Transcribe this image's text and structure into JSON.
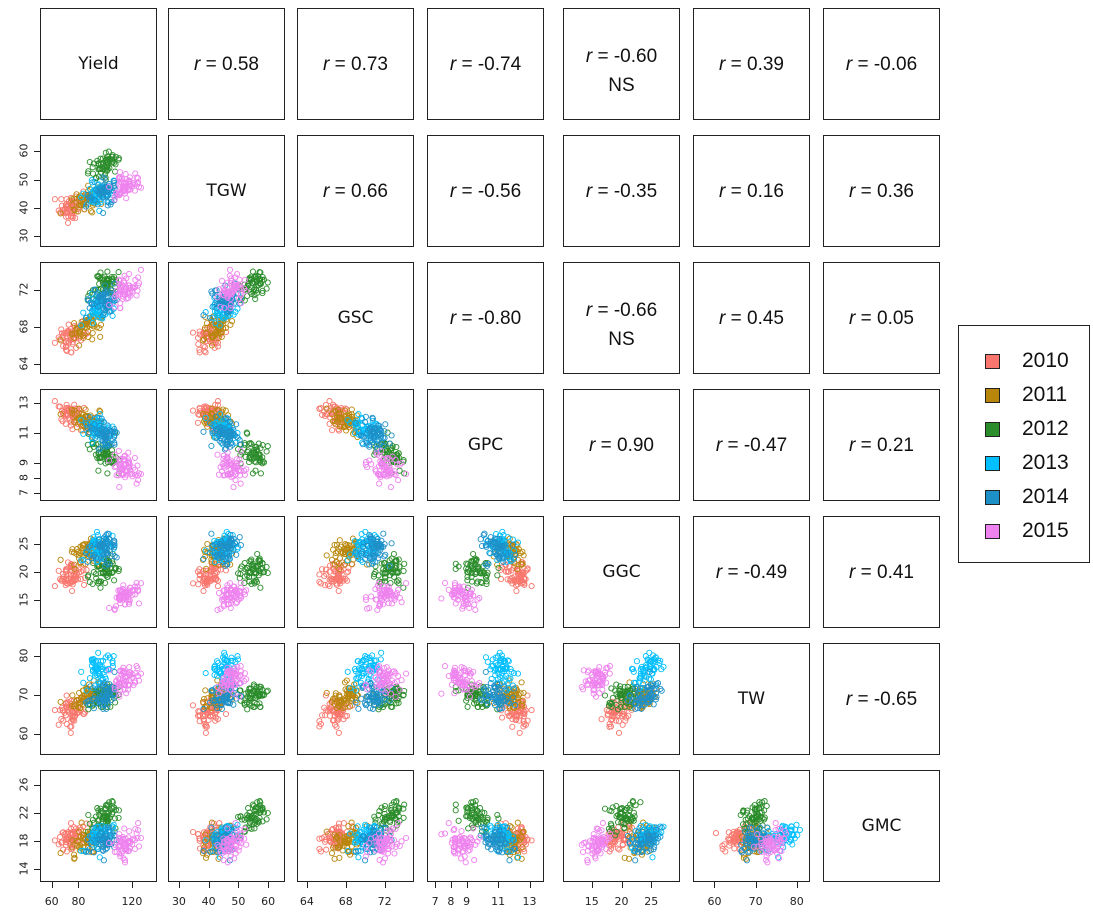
{
  "chart_data": {
    "type": "scatter",
    "subtype": "pairs-matrix",
    "variables": [
      {
        "name": "Yield",
        "range": [
          55,
          135
        ],
        "ticks": [
          60,
          80,
          120
        ]
      },
      {
        "name": "TGW",
        "range": [
          28,
          64
        ],
        "ticks": [
          30,
          40,
          50,
          60
        ]
      },
      {
        "name": "GSC",
        "range": [
          63.5,
          74.5
        ],
        "ticks": [
          64,
          68,
          72
        ]
      },
      {
        "name": "GPC",
        "range": [
          6.8,
          13.6
        ],
        "ticks": [
          7,
          8,
          9,
          11,
          13
        ]
      },
      {
        "name": "GGC",
        "range": [
          11,
          29
        ],
        "ticks": [
          15,
          20,
          25
        ]
      },
      {
        "name": "TW",
        "range": [
          56,
          82
        ],
        "ticks": [
          60,
          70,
          80
        ]
      },
      {
        "name": "GMC",
        "range": [
          12.8,
          27.5
        ],
        "ticks": [
          14,
          18,
          22,
          26
        ]
      }
    ],
    "correlations": [
      {
        "row": 0,
        "col": 1,
        "text": "= 0.58",
        "ns": ""
      },
      {
        "row": 0,
        "col": 2,
        "text": "= 0.73",
        "ns": ""
      },
      {
        "row": 0,
        "col": 3,
        "text": "= -0.74",
        "ns": ""
      },
      {
        "row": 0,
        "col": 4,
        "text": "= -0.60",
        "ns": "NS"
      },
      {
        "row": 0,
        "col": 5,
        "text": "= 0.39",
        "ns": ""
      },
      {
        "row": 0,
        "col": 6,
        "text": "= -0.06",
        "ns": ""
      },
      {
        "row": 1,
        "col": 2,
        "text": "= 0.66",
        "ns": ""
      },
      {
        "row": 1,
        "col": 3,
        "text": "= -0.56",
        "ns": ""
      },
      {
        "row": 1,
        "col": 4,
        "text": "= -0.35",
        "ns": ""
      },
      {
        "row": 1,
        "col": 5,
        "text": "= 0.16",
        "ns": ""
      },
      {
        "row": 1,
        "col": 6,
        "text": "= 0.36",
        "ns": ""
      },
      {
        "row": 2,
        "col": 3,
        "text": "= -0.80",
        "ns": ""
      },
      {
        "row": 2,
        "col": 4,
        "text": "= -0.66",
        "ns": "NS"
      },
      {
        "row": 2,
        "col": 5,
        "text": "= 0.45",
        "ns": ""
      },
      {
        "row": 2,
        "col": 6,
        "text": "= 0.05",
        "ns": ""
      },
      {
        "row": 3,
        "col": 4,
        "text": "= 0.90",
        "ns": ""
      },
      {
        "row": 3,
        "col": 5,
        "text": "= -0.47",
        "ns": ""
      },
      {
        "row": 3,
        "col": 6,
        "text": "= 0.21",
        "ns": ""
      },
      {
        "row": 4,
        "col": 5,
        "text": "= -0.49",
        "ns": ""
      },
      {
        "row": 4,
        "col": 6,
        "text": "= 0.41",
        "ns": ""
      },
      {
        "row": 5,
        "col": 6,
        "text": "= -0.65",
        "ns": ""
      }
    ],
    "r_symbol": "r",
    "series": [
      {
        "name": "2010",
        "color": "#F8766D",
        "means": [
          75,
          40,
          67,
          12.2,
          19.5,
          66,
          18.5
        ]
      },
      {
        "name": "2011",
        "color": "#B8860B",
        "means": [
          85,
          43,
          68,
          11.8,
          23.5,
          70,
          18
        ]
      },
      {
        "name": "2012",
        "color": "#2A8C2A",
        "means": [
          100,
          55,
          72.5,
          9.6,
          20.5,
          70,
          21.5
        ]
      },
      {
        "name": "2013",
        "color": "#00BFFF",
        "means": [
          95,
          45,
          70,
          11.3,
          24,
          76,
          18.5
        ]
      },
      {
        "name": "2014",
        "color": "#1E90C8",
        "means": [
          100,
          46,
          71,
          10.8,
          24,
          70,
          18
        ]
      },
      {
        "name": "2015",
        "color": "#EE82EE",
        "means": [
          115,
          48,
          72,
          8.6,
          16,
          74,
          17.5
        ]
      }
    ],
    "legend": {
      "position": "right",
      "entries": [
        "2010",
        "2011",
        "2012",
        "2013",
        "2014",
        "2015"
      ]
    },
    "points_per_series": 60
  }
}
